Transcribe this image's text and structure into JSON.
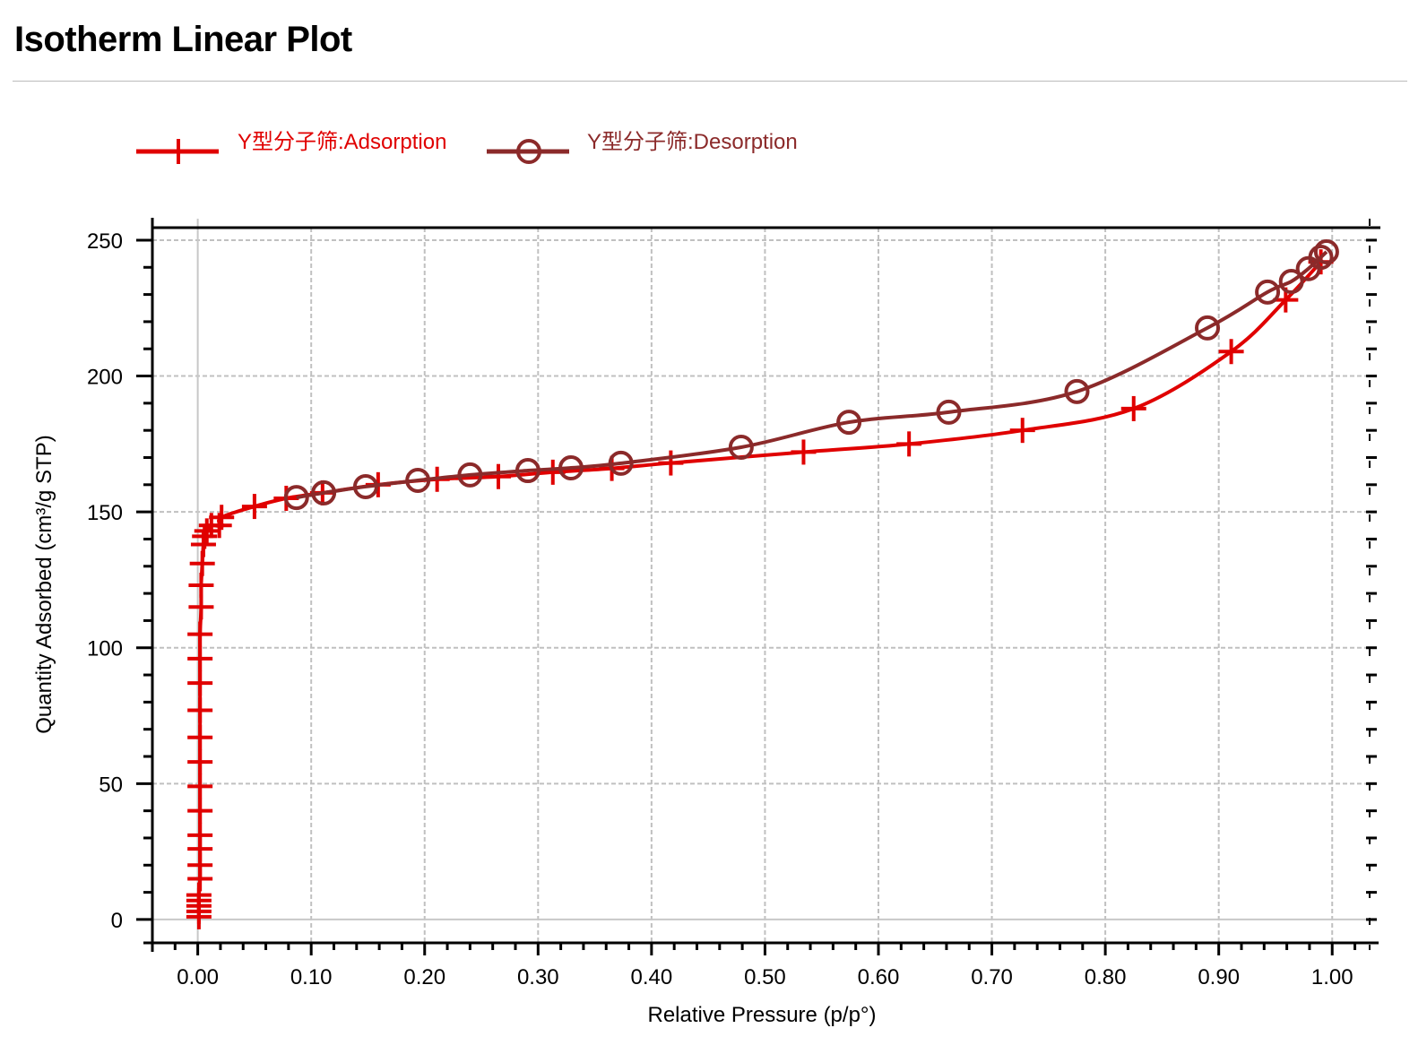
{
  "header": {
    "title": "Isotherm Linear Plot"
  },
  "chart_data": {
    "type": "line",
    "title": "Isotherm Linear Plot",
    "xlabel": "Relative Pressure (p/p°)",
    "ylabel": "Quantity Adsorbed (cm³/g STP)",
    "xlim": [
      -0.04,
      1.033
    ],
    "ylim": [
      -8.6,
      254.6
    ],
    "xticks": [
      0,
      0.1,
      0.2,
      0.3,
      0.4,
      0.5,
      0.6,
      0.7,
      0.8,
      0.9,
      1.0
    ],
    "xtick_labels": [
      "0.00",
      "0.10",
      "0.20",
      "0.30",
      "0.40",
      "0.50",
      "0.60",
      "0.70",
      "0.80",
      "0.90",
      "1.00"
    ],
    "yticks": [
      0,
      50,
      100,
      150,
      200,
      250
    ],
    "ytick_labels": [
      "0",
      "50",
      "100",
      "150",
      "200",
      "250"
    ],
    "grid": true,
    "legend_position": "top-left",
    "series": [
      {
        "name": "Y型分子筛:Adsorption",
        "color": "#e00000",
        "marker": "plus",
        "x": [
          0.001,
          0.001,
          0.001,
          0.001,
          0.001,
          0.002,
          0.002,
          0.002,
          0.002,
          0.002,
          0.002,
          0.002,
          0.002,
          0.002,
          0.002,
          0.002,
          0.002,
          0.003,
          0.003,
          0.004,
          0.005,
          0.006,
          0.008,
          0.012,
          0.019,
          0.021,
          0.05,
          0.078,
          0.11,
          0.159,
          0.211,
          0.265,
          0.313,
          0.365,
          0.417,
          0.534,
          0.627,
          0.727,
          0.825,
          0.911,
          0.959,
          0.99
        ],
        "y": [
          1,
          3,
          5,
          7,
          9,
          15,
          20,
          26,
          31,
          40,
          49,
          58,
          67,
          77,
          87,
          96,
          105,
          115,
          123,
          131,
          138,
          141,
          143,
          145,
          145,
          148,
          152,
          155,
          157,
          160,
          162,
          163,
          164.6,
          166,
          168,
          172,
          175,
          180,
          188,
          209,
          228,
          242
        ]
      },
      {
        "name": "Y型分子筛:Desorption",
        "color": "#8b2a2a",
        "marker": "circle",
        "x": [
          0.995,
          0.99,
          0.979,
          0.964,
          0.943,
          0.89,
          0.775,
          0.662,
          0.574,
          0.479,
          0.373,
          0.329,
          0.291,
          0.24,
          0.194,
          0.148,
          0.111,
          0.087
        ],
        "y": [
          245.7,
          243.7,
          239.5,
          234.8,
          230.9,
          217.7,
          194.3,
          186.7,
          183,
          173.8,
          167.9,
          166.2,
          165.2,
          163.6,
          161.6,
          159.3,
          157,
          155.3
        ]
      }
    ]
  }
}
